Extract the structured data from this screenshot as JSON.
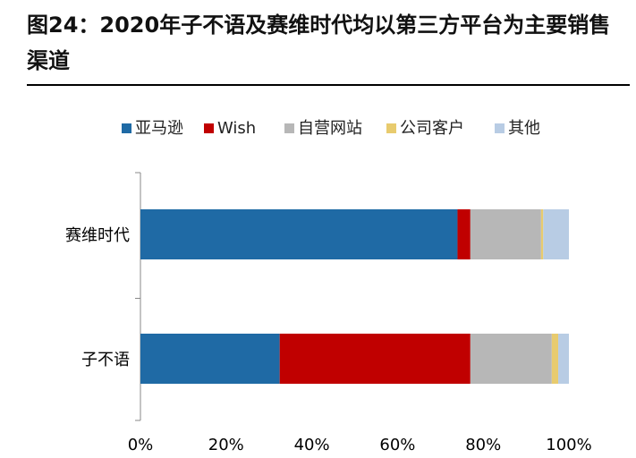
{
  "figure": {
    "title": "图24：2020年子不语及赛维时代均以第三方平台为主要销售渠道"
  },
  "chart_data": {
    "type": "bar",
    "orientation": "horizontal",
    "stacked": true,
    "normalized": true,
    "categories": [
      "赛维时代",
      "子不语"
    ],
    "series": [
      {
        "name": "亚马逊",
        "color": "#1F6AA5",
        "values": [
          74.0,
          32.5
        ]
      },
      {
        "name": "Wish",
        "color": "#C00000",
        "values": [
          3.0,
          44.5
        ]
      },
      {
        "name": "自营网站",
        "color": "#B7B7B7",
        "values": [
          16.5,
          19.0
        ]
      },
      {
        "name": "公司客户",
        "color": "#E8CB6E",
        "values": [
          0.5,
          1.5
        ]
      },
      {
        "name": "其他",
        "color": "#B8CCE4",
        "values": [
          6.0,
          2.5
        ]
      }
    ],
    "xlim": [
      0,
      100
    ],
    "xticks": [
      "0%",
      "20%",
      "40%",
      "60%",
      "80%",
      "100%"
    ],
    "legend_position": "top",
    "grid": false
  }
}
